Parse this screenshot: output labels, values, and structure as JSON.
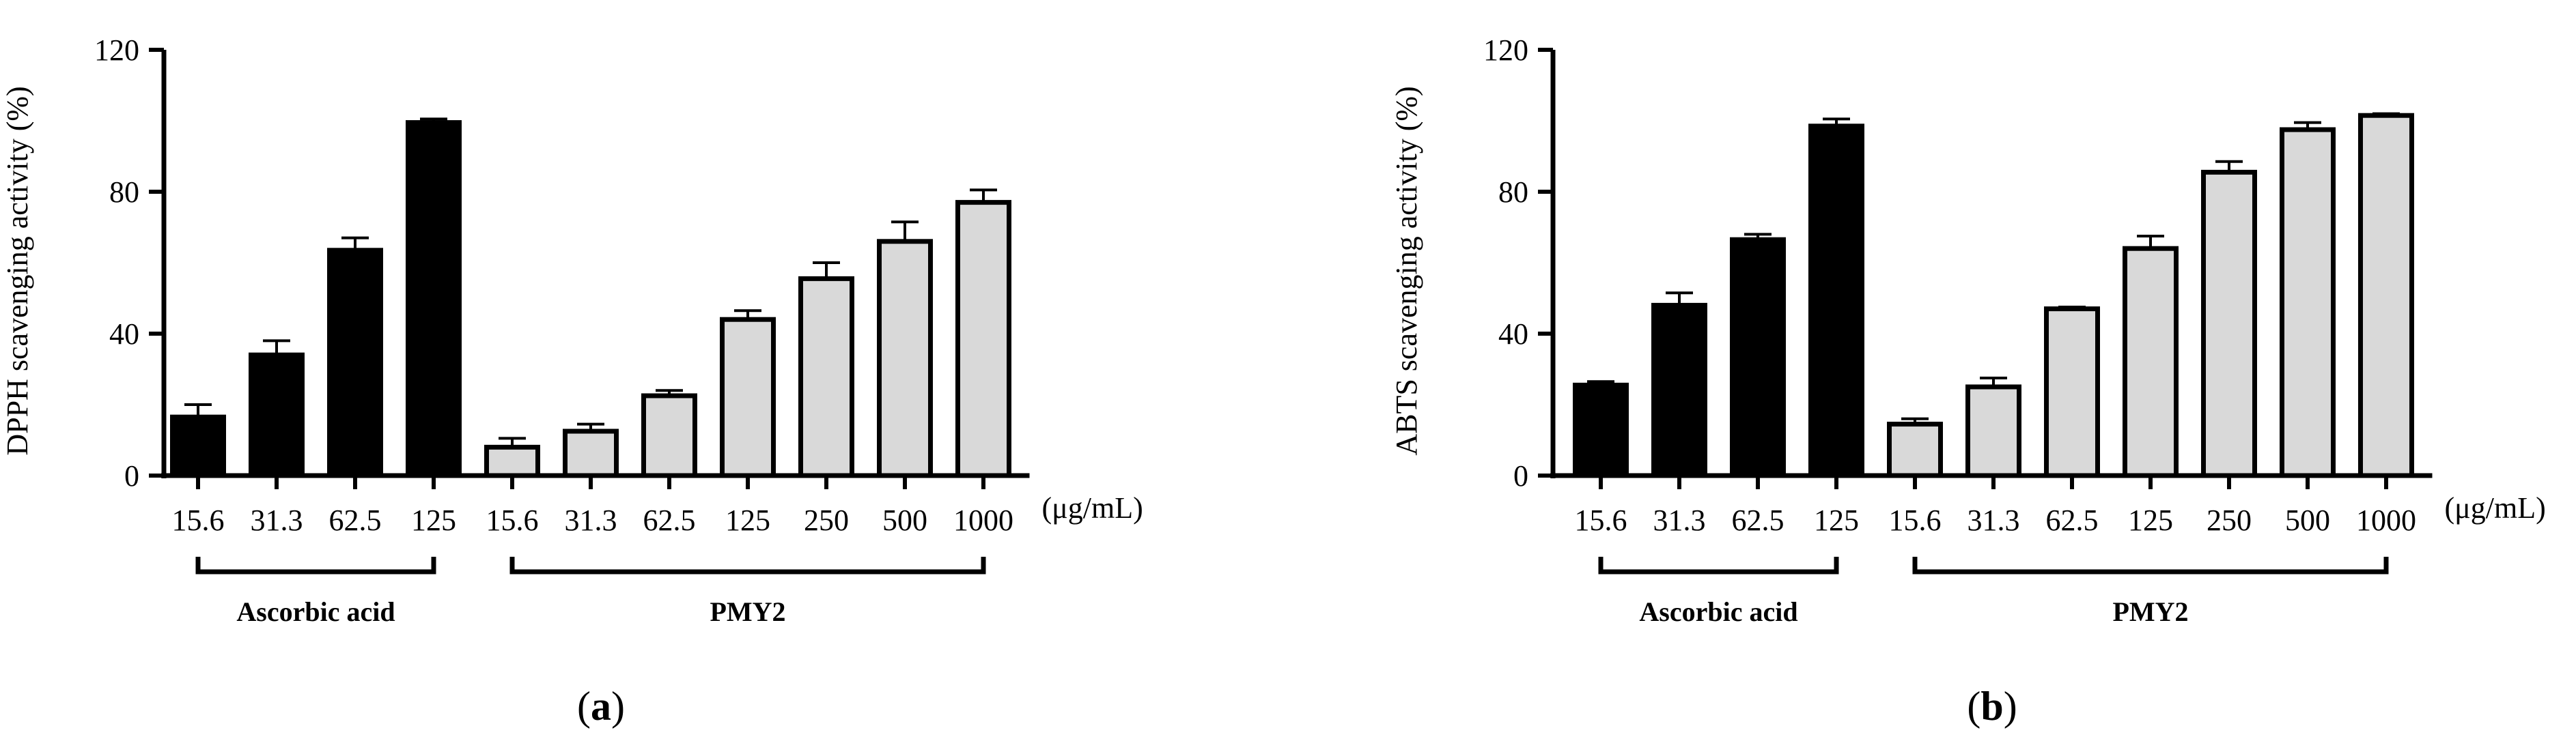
{
  "chart_data": [
    {
      "type": "bar",
      "panel": "a",
      "ylabel": "DPPH scavenging activity (%)",
      "ylim": [
        0,
        120
      ],
      "yticks": [
        "0",
        "40",
        "80",
        "120"
      ],
      "unit": "(μg/mL)",
      "colors": {
        "ascorbic": "#000000",
        "pmy2": "#d9d9d9"
      },
      "groups": [
        {
          "name": "Ascorbic acid",
          "categories": [
            "15.6",
            "31.3",
            "62.5",
            "125"
          ],
          "values": [
            16.5,
            34,
            63.5,
            99.5
          ],
          "errors": [
            3.5,
            4,
            3.5,
            1
          ]
        },
        {
          "name": "PMY2",
          "categories": [
            "15.6",
            "31.3",
            "62.5",
            "125",
            "250",
            "500",
            "1000"
          ],
          "values": [
            8,
            12.5,
            22.5,
            44,
            55.5,
            66,
            77
          ],
          "errors": [
            2.5,
            2,
            1.5,
            2.5,
            4.5,
            5.5,
            3.5
          ]
        }
      ]
    },
    {
      "type": "bar",
      "panel": "b",
      "ylabel": "ABTS scavenging activity (%)",
      "ylim": [
        0,
        120
      ],
      "yticks": [
        "0",
        "40",
        "80",
        "120"
      ],
      "unit": "(μg/mL)",
      "colors": {
        "ascorbic": "#000000",
        "pmy2": "#d9d9d9"
      },
      "groups": [
        {
          "name": "Ascorbic acid",
          "categories": [
            "15.6",
            "31.3",
            "62.5",
            "125"
          ],
          "values": [
            25.5,
            48,
            66.5,
            98.5
          ],
          "errors": [
            1,
            3.5,
            1.5,
            2
          ]
        },
        {
          "name": "PMY2",
          "categories": [
            "15.6",
            "31.3",
            "62.5",
            "125",
            "250",
            "500",
            "1000"
          ],
          "values": [
            14.5,
            25,
            47,
            64,
            85.5,
            97.5,
            101.5
          ],
          "errors": [
            1.5,
            2.5,
            0.5,
            3.5,
            3,
            2,
            0.5
          ]
        }
      ]
    }
  ],
  "panel_labels": [
    "a",
    "b"
  ]
}
